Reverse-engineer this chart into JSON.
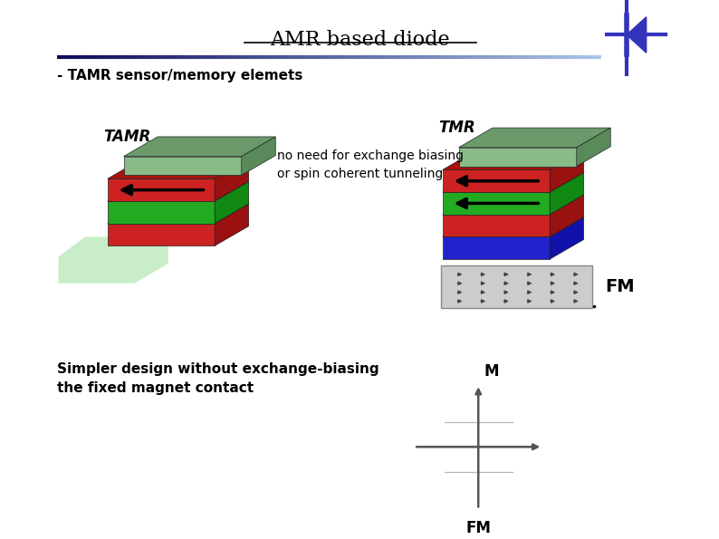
{
  "title": "AMR based diode",
  "subtitle": "- TAMR sensor/memory elemets",
  "tamr_label": "TAMR",
  "tmr_label": "TMR",
  "fm_label": "FM",
  "no_need_text": "no need for exchange biasing\nor spin coherent tunneling",
  "simpler_text": "Simpler design without exchange-biasing\nthe fixed magnet contact",
  "m_label": "M",
  "fm_axis_label": "FM",
  "bg_color": "#ffffff",
  "diode_color": "#3333bb",
  "shadow_color": "#b8e8b8",
  "green_top": "#88bb88",
  "green_top_dark": "#6a9a6a",
  "green_top_side": "#5a8a5a",
  "red_color": "#cc2222",
  "red_dark": "#aa1111",
  "red_side": "#991111",
  "green_mid": "#22aa22",
  "green_mid_dark": "#119911",
  "green_mid_side": "#118811",
  "blue_color": "#2222cc",
  "blue_dark": "#1111aa",
  "fm_rect_color": "#cccccc",
  "fm_rect_edge": "#888888",
  "fm_arrow_color": "#444444",
  "axis_color": "#555555"
}
